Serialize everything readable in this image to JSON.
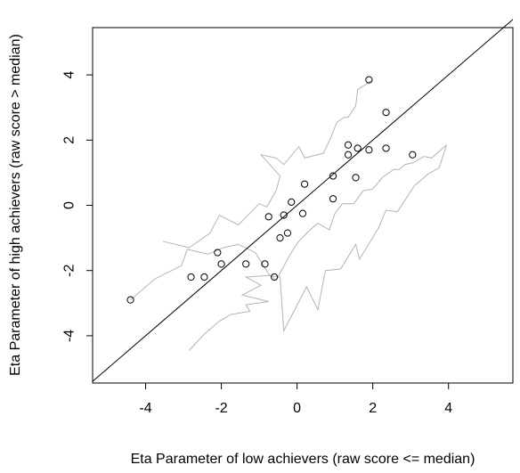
{
  "chart_data": {
    "type": "scatter",
    "title": "",
    "xlabel": "Eta Parameter of low achievers (raw score <= median)",
    "ylabel": "Eta Parameter of high achievers (raw score > median)",
    "xlim": [
      -5.4,
      5.7
    ],
    "ylim": [
      -5.45,
      5.45
    ],
    "xticks": [
      -4,
      -2,
      0,
      2,
      4
    ],
    "yticks": [
      -4,
      -2,
      0,
      2,
      4
    ],
    "xtick_labels": [
      "-4",
      "-2",
      "0",
      "2",
      "4"
    ],
    "ytick_labels": [
      "-4",
      "-2",
      "0",
      "2",
      "4"
    ],
    "grid": false,
    "points": [
      {
        "x": -4.4,
        "y": -2.9
      },
      {
        "x": -2.8,
        "y": -2.2
      },
      {
        "x": -2.45,
        "y": -2.2
      },
      {
        "x": -2.1,
        "y": -1.45
      },
      {
        "x": -2.0,
        "y": -1.8
      },
      {
        "x": -1.35,
        "y": -1.8
      },
      {
        "x": -0.85,
        "y": -1.8
      },
      {
        "x": -0.75,
        "y": -0.35
      },
      {
        "x": -0.6,
        "y": -2.2
      },
      {
        "x": -0.45,
        "y": -1.0
      },
      {
        "x": -0.35,
        "y": -0.3
      },
      {
        "x": -0.25,
        "y": -0.85
      },
      {
        "x": -0.15,
        "y": 0.1
      },
      {
        "x": 0.15,
        "y": -0.25
      },
      {
        "x": 0.2,
        "y": 0.65
      },
      {
        "x": 0.95,
        "y": 0.9
      },
      {
        "x": 0.95,
        "y": 0.2
      },
      {
        "x": 1.35,
        "y": 1.85
      },
      {
        "x": 1.35,
        "y": 1.55
      },
      {
        "x": 1.55,
        "y": 0.85
      },
      {
        "x": 1.6,
        "y": 1.75
      },
      {
        "x": 1.9,
        "y": 1.7
      },
      {
        "x": 1.9,
        "y": 3.85
      },
      {
        "x": 2.35,
        "y": 2.85
      },
      {
        "x": 2.35,
        "y": 1.75
      },
      {
        "x": 3.05,
        "y": 1.55
      }
    ],
    "identity_line": {
      "from": [
        -5.4,
        -5.4
      ],
      "to": [
        5.7,
        5.7
      ]
    },
    "upper_band": [
      [
        -3.55,
        -1.1
      ],
      [
        -2.85,
        -1.3
      ],
      [
        -2.3,
        -0.85
      ],
      [
        -2.05,
        -0.3
      ],
      [
        -1.55,
        -0.6
      ],
      [
        -1.0,
        0.05
      ],
      [
        -0.8,
        -0.05
      ],
      [
        -0.55,
        0.45
      ],
      [
        -0.45,
        0.9
      ],
      [
        -0.95,
        1.55
      ],
      [
        -0.55,
        1.45
      ],
      [
        -0.35,
        1.25
      ],
      [
        0.05,
        1.8
      ],
      [
        0.2,
        1.45
      ],
      [
        0.7,
        1.6
      ],
      [
        0.9,
        2.1
      ],
      [
        1.05,
        2.55
      ],
      [
        1.25,
        2.7
      ],
      [
        1.35,
        2.7
      ],
      [
        1.55,
        3.05
      ],
      [
        1.6,
        3.55
      ],
      [
        2.0,
        3.85
      ]
    ],
    "lower_band": [
      [
        -4.4,
        -2.9
      ],
      [
        -3.75,
        -2.25
      ],
      [
        -3.05,
        -1.85
      ],
      [
        -2.9,
        -1.35
      ],
      [
        -2.35,
        -1.5
      ],
      [
        -1.95,
        -1.3
      ],
      [
        -1.55,
        -1.2
      ],
      [
        -1.1,
        -1.45
      ],
      [
        -0.75,
        -2.1
      ],
      [
        -0.55,
        -2.3
      ],
      [
        -0.3,
        -1.75
      ],
      [
        -0.1,
        -1.35
      ],
      [
        0.05,
        -1.1
      ],
      [
        0.3,
        -0.8
      ],
      [
        0.55,
        -0.55
      ],
      [
        0.85,
        -0.75
      ],
      [
        1.0,
        -0.25
      ],
      [
        1.2,
        0.05
      ],
      [
        1.5,
        0.05
      ],
      [
        1.75,
        0.45
      ],
      [
        2.0,
        0.5
      ],
      [
        2.25,
        0.85
      ],
      [
        2.55,
        1.1
      ],
      [
        2.7,
        1.1
      ],
      [
        2.85,
        1.25
      ],
      [
        3.05,
        1.3
      ],
      [
        3.35,
        1.5
      ],
      [
        3.55,
        1.45
      ],
      [
        3.95,
        1.85
      ]
    ],
    "lower_band_tail": [
      [
        -2.85,
        -4.45
      ],
      [
        -2.45,
        -3.95
      ],
      [
        -2.05,
        -3.55
      ],
      [
        -1.75,
        -3.35
      ],
      [
        -1.25,
        -3.25
      ],
      [
        -1.35,
        -3.05
      ],
      [
        -0.75,
        -2.95
      ],
      [
        -1.45,
        -2.75
      ],
      [
        -0.95,
        -2.45
      ],
      [
        -1.35,
        -2.2
      ],
      [
        -0.75,
        -2.15
      ],
      [
        -0.45,
        -2.2
      ],
      [
        -0.35,
        -3.85
      ],
      [
        0.25,
        -2.5
      ],
      [
        0.55,
        -3.2
      ],
      [
        0.75,
        -2.0
      ],
      [
        1.15,
        -1.95
      ],
      [
        1.55,
        -1.2
      ],
      [
        1.65,
        -1.65
      ],
      [
        2.15,
        -0.7
      ],
      [
        2.35,
        -0.15
      ],
      [
        2.65,
        -0.2
      ],
      [
        3.1,
        0.6
      ],
      [
        3.45,
        0.95
      ],
      [
        3.75,
        1.15
      ],
      [
        3.95,
        1.85
      ]
    ],
    "colors": {
      "points": "#000000",
      "band": "#b4b4b4",
      "line": "#000000",
      "frame": "#000000"
    }
  }
}
